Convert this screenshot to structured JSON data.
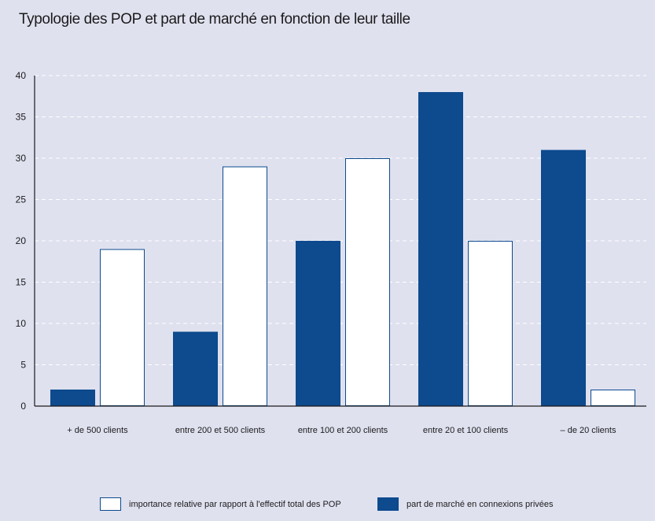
{
  "title": "Typologie des POP et part de marché en fonction de leur taille",
  "colors": {
    "background": "#dfe1ef",
    "series_1_fill": "#ffffff",
    "series_1_stroke": "#0d4a8e",
    "series_2_fill": "#0d4a8e",
    "axis": "#1b1b1b",
    "grid": "#ffffff"
  },
  "legend": {
    "item_1": "importance relative par rapport à l'effectif total des POP",
    "item_2": "part de marché en connexions privées"
  },
  "chart_data": {
    "type": "bar",
    "title": "Typologie des POP et part de marché en fonction de leur taille",
    "xlabel": "",
    "ylabel": "",
    "categories": [
      "+ de 500 clients",
      "entre 200 et 500 clients",
      "entre 100 et 200 clients",
      "entre 20 et 100 clients",
      "– de 20 clients"
    ],
    "series": [
      {
        "name": "part de marché en connexions privées",
        "values": [
          2,
          9,
          20,
          38,
          31
        ]
      },
      {
        "name": "importance relative par rapport à l'effectif total des POP",
        "values": [
          19,
          29,
          30,
          20,
          2
        ]
      }
    ],
    "ylim": [
      0,
      40
    ],
    "yticks": [
      0,
      5,
      10,
      15,
      20,
      25,
      30,
      35,
      40
    ],
    "grid": "horizontal dashed",
    "legend_placement": "bottom"
  }
}
